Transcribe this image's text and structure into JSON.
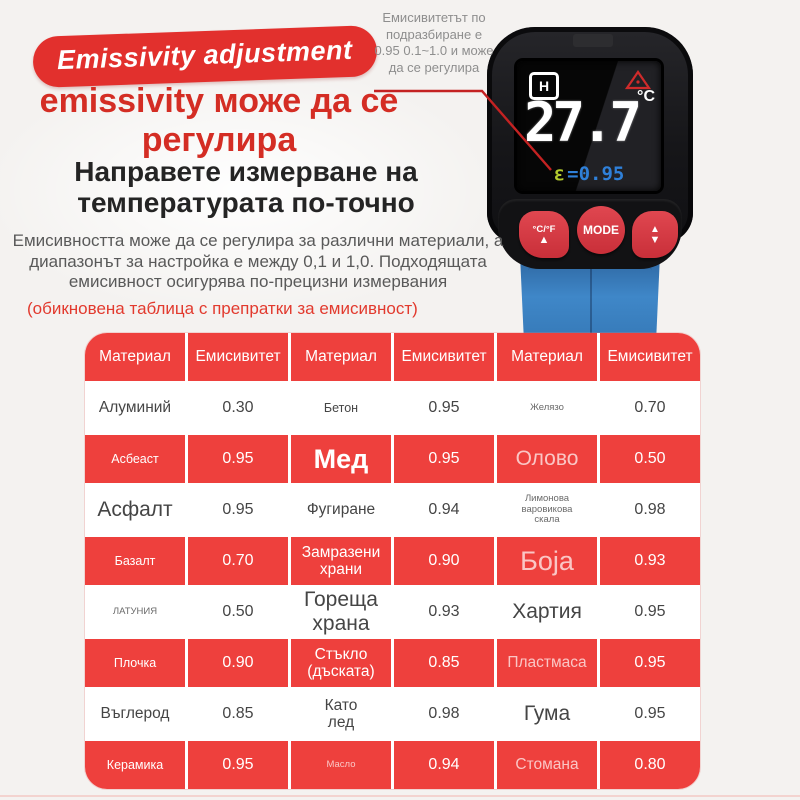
{
  "badge": {
    "label": "Emissivity adjustment"
  },
  "heading_red": {
    "lines": [
      "emissivity може да се",
      "регулира"
    ]
  },
  "heading_black": {
    "lines": [
      "Направете измерване на",
      "температурата по-точно"
    ]
  },
  "paragraph": {
    "lines": [
      "Емисивността може да се регулира за различни материали, а",
      "диапазонът за настройка е между 0,1 и 1,0. Подходящата",
      "емисивност осигурява по-прецизни измервания"
    ]
  },
  "note": {
    "text": "(обикновена таблица с препратки за емисивност)"
  },
  "callout": {
    "lines": [
      "Емисивитетът по",
      "подразбиране е",
      "0.95 0.1~1.0 и може",
      "да се регулира"
    ]
  },
  "device": {
    "display": {
      "mode_icon": "H",
      "temperature": "27.7",
      "unit": "°C",
      "emissivity_symbol": "ε",
      "emissivity_value": "=0.95"
    },
    "buttons": {
      "left_label": "°C/°F",
      "left_arrow": "▲",
      "mode_label": "MODE",
      "right_up": "▲",
      "right_down": "▼"
    }
  },
  "colors": {
    "table_red": "#ee403d",
    "badge_red": "#e2302d",
    "heading_red": "#d42d24",
    "body_blue": "#3f87c8",
    "lcd_value_blue": "#2f80d9",
    "lcd_epsilon_green": "#b4cc2e",
    "background": "#f4f2f0"
  },
  "table": {
    "header_row": [
      "Материал",
      "Емисивитет",
      "Материал",
      "Емисивитет",
      "Материал",
      "Емисивитет"
    ],
    "rows": [
      {
        "variant": "light",
        "cells": [
          {
            "text": "Алуминий",
            "size": "md"
          },
          {
            "text": "0.30",
            "size": "val"
          },
          {
            "text": "Бетон",
            "size": "sm"
          },
          {
            "text": "0.95",
            "size": "val"
          },
          {
            "text": "Желязо",
            "size": "xs"
          },
          {
            "text": "0.70",
            "size": "val"
          }
        ]
      },
      {
        "variant": "red",
        "cells": [
          {
            "text": "Асбеаст",
            "size": "sm"
          },
          {
            "text": "0.95",
            "size": "val"
          },
          {
            "text": "Мед",
            "size": "xl"
          },
          {
            "text": "0.95",
            "size": "val"
          },
          {
            "text": "Олово",
            "size": "lg",
            "faded": true
          },
          {
            "text": "0.50",
            "size": "val"
          }
        ]
      },
      {
        "variant": "light",
        "cells": [
          {
            "text": "Асфалт",
            "size": "lg"
          },
          {
            "text": "0.95",
            "size": "val"
          },
          {
            "text": "Фугиране",
            "size": "md"
          },
          {
            "text": "0.94",
            "size": "val"
          },
          {
            "text": "Лимонова варовикова\nскала",
            "size": "xs"
          },
          {
            "text": "0.98",
            "size": "val"
          }
        ]
      },
      {
        "variant": "red",
        "cells": [
          {
            "text": "Базалт",
            "size": "sm"
          },
          {
            "text": "0.70",
            "size": "val"
          },
          {
            "text": "Замразени\nхрани",
            "size": "md"
          },
          {
            "text": "0.90",
            "size": "val"
          },
          {
            "text": "Боја",
            "size": "xl",
            "faded": true
          },
          {
            "text": "0.93",
            "size": "val"
          }
        ]
      },
      {
        "variant": "light",
        "cells": [
          {
            "text": "ЛАТУНИЯ",
            "size": "xs"
          },
          {
            "text": "0.50",
            "size": "val"
          },
          {
            "text": "Гореща\nхрана",
            "size": "lg"
          },
          {
            "text": "0.93",
            "size": "val"
          },
          {
            "text": "Хартия",
            "size": "lg"
          },
          {
            "text": "0.95",
            "size": "val"
          }
        ]
      },
      {
        "variant": "red",
        "cells": [
          {
            "text": "Плочка",
            "size": "sm"
          },
          {
            "text": "0.90",
            "size": "val"
          },
          {
            "text": "Стъкло\n(дъската)",
            "size": "md"
          },
          {
            "text": "0.85",
            "size": "val"
          },
          {
            "text": "Пластмаса",
            "size": "md",
            "faded": true
          },
          {
            "text": "0.95",
            "size": "val"
          }
        ]
      },
      {
        "variant": "light",
        "cells": [
          {
            "text": "Въглерод",
            "size": "md"
          },
          {
            "text": "0.85",
            "size": "val"
          },
          {
            "text": "Като\nлед",
            "size": "md"
          },
          {
            "text": "0.98",
            "size": "val"
          },
          {
            "text": "Гума",
            "size": "lg"
          },
          {
            "text": "0.95",
            "size": "val"
          }
        ]
      },
      {
        "variant": "red",
        "cells": [
          {
            "text": "Керамика",
            "size": "sm"
          },
          {
            "text": "0.95",
            "size": "val"
          },
          {
            "text": "Масло",
            "size": "xs",
            "faded": true
          },
          {
            "text": "0.94",
            "size": "val"
          },
          {
            "text": "Стомана",
            "size": "md",
            "faded": true
          },
          {
            "text": "0.80",
            "size": "val"
          }
        ]
      }
    ]
  }
}
